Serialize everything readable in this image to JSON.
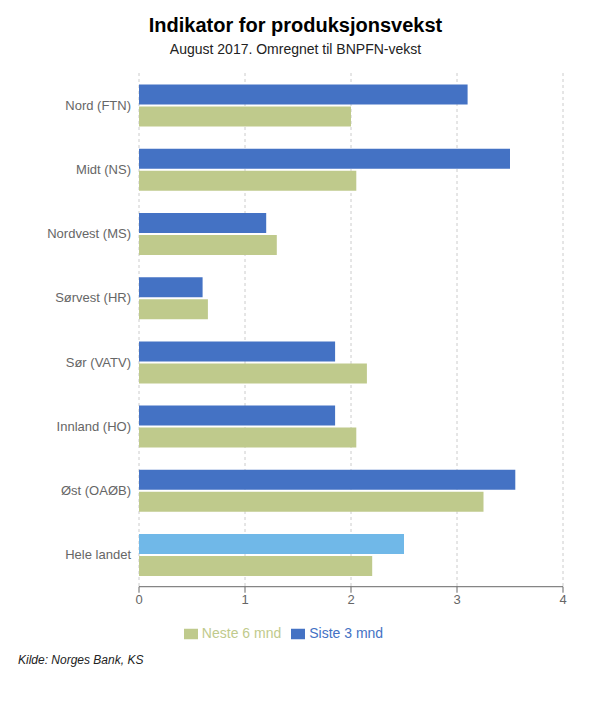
{
  "chart_data": {
    "type": "bar",
    "orientation": "horizontal",
    "title": "Indikator for produksjonsvekst",
    "subtitle": "August 2017. Omregnet til BNPFN-vekst",
    "annotations": [
      "Kilde: Norges Bank, KS"
    ],
    "categories": [
      "Nord (FTN)",
      "Midt (NS)",
      "Nordvest (MS)",
      "Sørvest (HR)",
      "Sør (VATV)",
      "Innland (HO)",
      "Øst (OAØB)",
      "Hele landet"
    ],
    "series": [
      {
        "name": "Siste 3 mnd",
        "color": "#4472C4",
        "colors": [
          "#4472C4",
          "#4472C4",
          "#4472C4",
          "#4472C4",
          "#4472C4",
          "#4472C4",
          "#4472C4",
          "#70B8E8"
        ],
        "values": [
          3.1,
          3.5,
          1.2,
          0.6,
          1.85,
          1.85,
          3.55,
          2.5
        ]
      },
      {
        "name": "Neste 6 mnd",
        "color": "#BFCA8C",
        "values": [
          2.0,
          2.05,
          1.3,
          0.65,
          2.15,
          2.05,
          3.25,
          2.2
        ]
      }
    ],
    "xlim": [
      0,
      4
    ],
    "xticks": [
      0,
      1,
      2,
      3,
      4
    ],
    "grid": true,
    "legend": "bottom"
  }
}
